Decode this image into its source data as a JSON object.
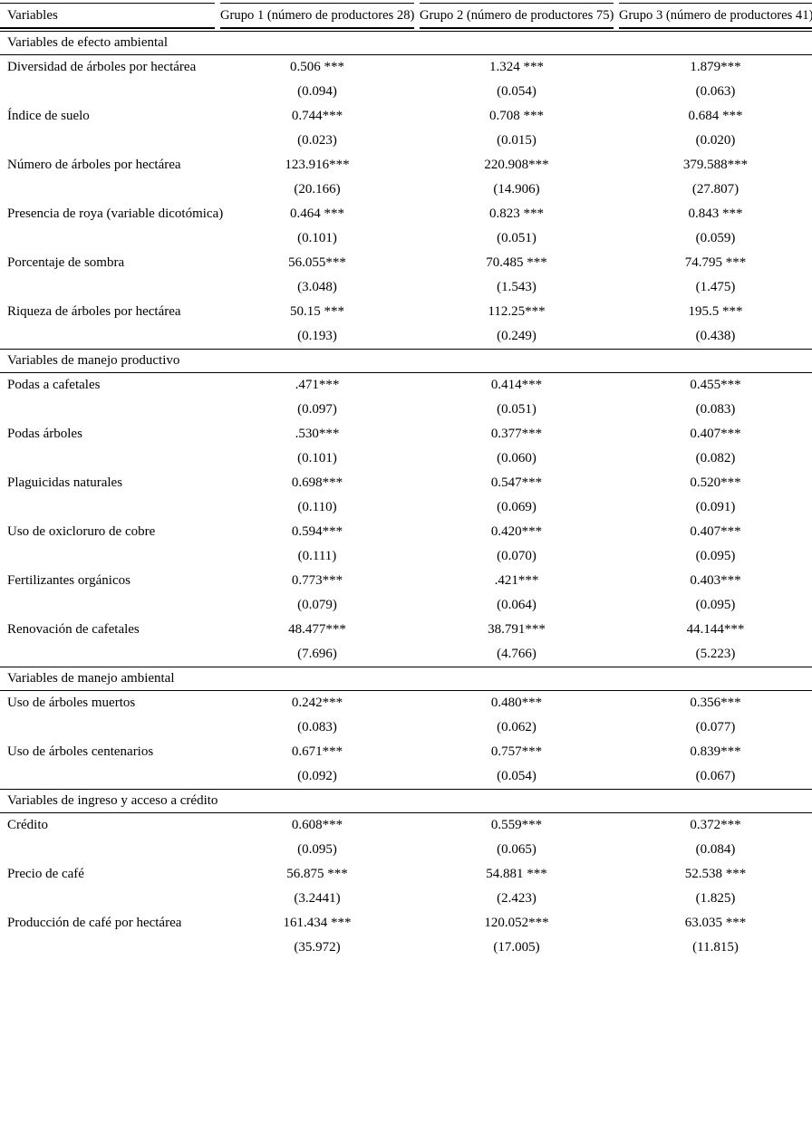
{
  "page": {
    "background_color": "#ffffff",
    "text_color": "#000000"
  },
  "table": {
    "header": {
      "variables_label": "Variables",
      "group_headers": [
        "Grupo 1 (número de productores 28)",
        "Grupo 2 (número de productores 75)",
        "Grupo 3 (número de productores 41)"
      ]
    },
    "sections": [
      {
        "title": "Variables de efecto ambiental",
        "rows": [
          {
            "label": "Diversidad de árboles por hectárea",
            "values": [
              "0.506 ***",
              "1.324 ***",
              "1.879***"
            ],
            "errors": [
              "(0.094)",
              "(0.054)",
              "(0.063)"
            ]
          },
          {
            "label": "Índice de suelo",
            "values": [
              "0.744***",
              "0.708 ***",
              "0.684 ***"
            ],
            "errors": [
              "(0.023)",
              "(0.015)",
              "(0.020)"
            ]
          },
          {
            "label": "Número de árboles por hectárea",
            "values": [
              "123.916***",
              "220.908***",
              "379.588***"
            ],
            "errors": [
              "(20.166)",
              "(14.906)",
              "(27.807)"
            ]
          },
          {
            "label": "Presencia de roya (variable dicotómica)",
            "values": [
              "0.464 ***",
              "0.823 ***",
              "0.843 ***"
            ],
            "errors": [
              "(0.101)",
              "(0.051)",
              "(0.059)"
            ]
          },
          {
            "label": "Porcentaje de sombra",
            "values": [
              "56.055***",
              "70.485 ***",
              "74.795 ***"
            ],
            "errors": [
              "(3.048)",
              "(1.543)",
              "(1.475)"
            ]
          },
          {
            "label": "Riqueza de árboles por hectárea",
            "values": [
              "50.15 ***",
              "112.25***",
              "195.5 ***"
            ],
            "errors": [
              "(0.193)",
              "(0.249)",
              "(0.438)"
            ]
          }
        ]
      },
      {
        "title": "Variables de manejo productivo",
        "rows": [
          {
            "label": "Podas a cafetales",
            "values": [
              ".471***",
              "0.414***",
              "0.455***"
            ],
            "errors": [
              "(0.097)",
              "(0.051)",
              "(0.083)"
            ]
          },
          {
            "label": "Podas árboles",
            "values": [
              ".530***",
              "0.377***",
              "0.407***"
            ],
            "errors": [
              "(0.101)",
              "(0.060)",
              "(0.082)"
            ]
          },
          {
            "label": "Plaguicidas naturales",
            "values": [
              "0.698***",
              "0.547***",
              "0.520***"
            ],
            "errors": [
              "(0.110)",
              "(0.069)",
              "(0.091)"
            ]
          },
          {
            "label": "Uso de oxicloruro de cobre",
            "values": [
              "0.594***",
              "0.420***",
              "0.407***"
            ],
            "errors": [
              "(0.111)",
              "(0.070)",
              "(0.095)"
            ]
          },
          {
            "label": "Fertilizantes orgánicos",
            "values": [
              "0.773***",
              ".421***",
              "0.403***"
            ],
            "errors": [
              "(0.079)",
              "(0.064)",
              "(0.095)"
            ]
          },
          {
            "label": "Renovación de cafetales",
            "values": [
              "48.477***",
              "38.791***",
              "44.144***"
            ],
            "errors": [
              "(7.696)",
              "(4.766)",
              "(5.223)"
            ]
          }
        ]
      },
      {
        "title": "Variables de manejo ambiental",
        "rows": [
          {
            "label": "Uso de árboles muertos",
            "values": [
              "0.242***",
              "0.480***",
              "0.356***"
            ],
            "errors": [
              "(0.083)",
              "(0.062)",
              "(0.077)"
            ]
          },
          {
            "label": "Uso de árboles centenarios",
            "values": [
              "0.671***",
              "0.757***",
              "0.839***"
            ],
            "errors": [
              "(0.092)",
              "(0.054)",
              "(0.067)"
            ]
          }
        ]
      },
      {
        "title": "Variables de ingreso y acceso a crédito",
        "rows": [
          {
            "label": "Crédito",
            "values": [
              "0.608***",
              "0.559***",
              "0.372***"
            ],
            "errors": [
              "(0.095)",
              "(0.065)",
              "(0.084)"
            ]
          },
          {
            "label": "Precio de café",
            "values": [
              "56.875 ***",
              "54.881 ***",
              "52.538 ***"
            ],
            "errors": [
              "(3.2441)",
              "(2.423)",
              "(1.825)"
            ]
          },
          {
            "label": "Producción de café por hectárea",
            "values": [
              "161.434 ***",
              "120.052***",
              "63.035 ***"
            ],
            "errors": [
              "(35.972)",
              "(17.005)",
              "(11.815)"
            ]
          }
        ]
      }
    ]
  }
}
